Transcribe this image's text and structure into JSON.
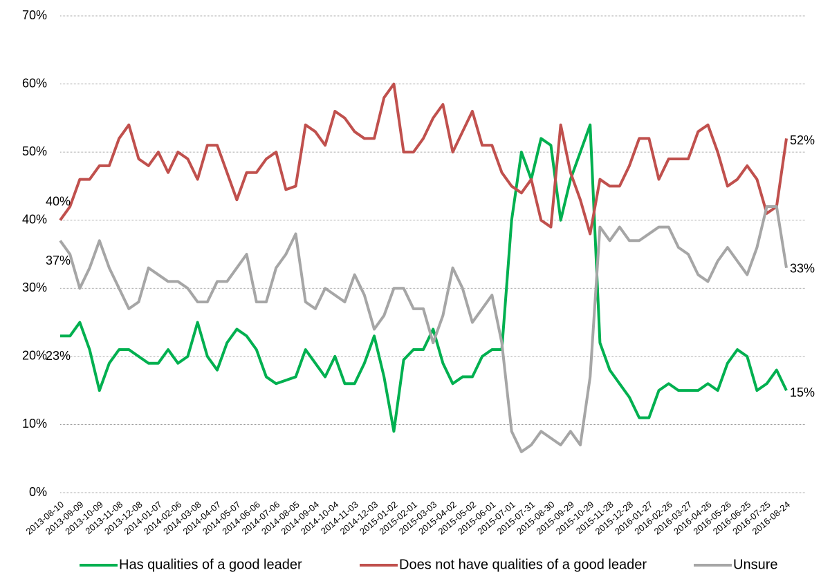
{
  "chart_data": {
    "type": "line",
    "categories": [
      "2013-08-10",
      null,
      "2013-09-09",
      null,
      "2013-10-09",
      null,
      "2013-11-08",
      null,
      "2013-12-08",
      null,
      "2014-01-07",
      null,
      "2014-02-06",
      null,
      "2014-03-08",
      null,
      "2014-04-07",
      null,
      "2014-05-07",
      null,
      "2014-06-06",
      null,
      "2014-07-06",
      null,
      "2014-08-05",
      null,
      "2014-09-04",
      null,
      "2014-10-04",
      null,
      "2014-11-03",
      null,
      "2014-12-03",
      null,
      "2015-01-02",
      null,
      "2015-02-01",
      null,
      "2015-03-03",
      null,
      "2015-04-02",
      null,
      "2015-05-02",
      null,
      "2015-06-01",
      null,
      "2015-07-01",
      null,
      "2015-07-31",
      null,
      "2015-08-30",
      null,
      "2015-09-29",
      null,
      "2015-10-29",
      null,
      "2015-11-28",
      null,
      "2015-12-28",
      null,
      "2016-01-27",
      null,
      "2016-02-26",
      null,
      "2016-03-27",
      null,
      "2016-04-26",
      null,
      "2016-05-26",
      null,
      "2016-06-25",
      null,
      "2016-07-25",
      null,
      "2016-08-24"
    ],
    "series": [
      {
        "name": "Has qualities of a good leader",
        "color": "#00b050",
        "values": [
          23,
          23,
          25,
          21,
          15,
          19,
          21,
          21,
          20,
          19,
          19,
          21,
          19,
          20,
          25,
          20,
          18,
          22,
          24,
          23,
          21,
          17,
          16,
          16.5,
          17,
          21,
          19,
          17,
          20,
          16,
          16,
          19,
          23,
          17,
          9,
          19.5,
          21,
          21,
          24,
          19,
          16,
          17,
          17,
          20,
          21,
          21,
          40,
          50,
          46,
          52,
          51,
          40,
          46,
          50,
          54,
          22,
          18,
          16,
          14,
          11,
          11,
          15,
          16,
          15,
          15,
          15,
          16,
          15,
          19,
          21,
          20,
          15,
          16,
          18,
          15
        ],
        "value_labels": [
          "23%",
          null,
          null,
          null,
          null,
          null,
          null,
          null,
          null,
          null,
          null,
          null,
          null,
          null,
          null,
          null,
          null,
          null,
          null,
          null,
          null,
          null,
          null,
          null,
          null,
          null,
          null,
          null,
          null,
          null,
          null,
          null,
          null,
          null,
          null,
          null,
          null,
          null,
          null,
          null,
          null,
          null,
          null,
          null,
          null,
          null,
          null,
          null,
          null,
          null,
          null,
          null,
          null,
          null,
          null,
          null,
          null,
          null,
          null,
          null,
          null,
          null,
          null,
          null,
          null,
          null,
          null,
          null,
          null,
          null,
          null,
          null,
          null,
          null,
          "15%"
        ]
      },
      {
        "name": "Does not have qualities of a good leader",
        "color": "#c0504d",
        "values": [
          40,
          42,
          46,
          46,
          48,
          48,
          52,
          54,
          49,
          48,
          50,
          47,
          50,
          49,
          46,
          51,
          51,
          47,
          43,
          47,
          47,
          49,
          50,
          44.5,
          45,
          54,
          53,
          51,
          56,
          55,
          53,
          52,
          52,
          58,
          60,
          50,
          50,
          52,
          55,
          57,
          50,
          53,
          56,
          51,
          51,
          47,
          45,
          44,
          46,
          40,
          39,
          54,
          47,
          43,
          38,
          46,
          45,
          45,
          48,
          52,
          52,
          46,
          49,
          49,
          49,
          53,
          54,
          50,
          45,
          46,
          48,
          46,
          41,
          42,
          52
        ],
        "value_labels": [
          "40%",
          null,
          null,
          null,
          null,
          null,
          null,
          null,
          null,
          null,
          null,
          null,
          null,
          null,
          null,
          null,
          null,
          null,
          null,
          null,
          null,
          null,
          null,
          null,
          null,
          null,
          null,
          null,
          null,
          null,
          null,
          null,
          null,
          null,
          null,
          null,
          null,
          null,
          null,
          null,
          null,
          null,
          null,
          null,
          null,
          null,
          null,
          null,
          null,
          null,
          null,
          null,
          null,
          null,
          null,
          null,
          null,
          null,
          null,
          null,
          null,
          null,
          null,
          null,
          null,
          null,
          null,
          null,
          null,
          null,
          null,
          null,
          null,
          null,
          "52%"
        ]
      },
      {
        "name": "Unsure",
        "color": "#a6a6a6",
        "values": [
          37,
          35,
          30,
          33,
          37,
          33,
          30,
          27,
          28,
          33,
          32,
          31,
          31,
          30,
          28,
          28,
          31,
          31,
          33,
          35,
          28,
          28,
          33,
          35,
          38,
          28,
          27,
          30,
          29,
          28,
          32,
          29,
          24,
          26,
          30,
          30,
          27,
          27,
          22,
          26,
          33,
          30,
          25,
          27,
          29,
          22,
          9,
          6,
          7,
          9,
          8,
          7,
          9,
          7,
          17,
          39,
          37,
          39,
          37,
          37,
          38,
          39,
          39,
          36,
          35,
          32,
          31,
          34,
          36,
          34,
          32,
          36,
          42,
          42,
          33
        ],
        "value_labels": [
          "37%",
          null,
          null,
          null,
          null,
          null,
          null,
          null,
          null,
          null,
          null,
          null,
          null,
          null,
          null,
          null,
          null,
          null,
          null,
          null,
          null,
          null,
          null,
          null,
          null,
          null,
          null,
          null,
          null,
          null,
          null,
          null,
          null,
          null,
          null,
          null,
          null,
          null,
          null,
          null,
          null,
          null,
          null,
          null,
          null,
          null,
          null,
          null,
          null,
          null,
          null,
          null,
          null,
          null,
          null,
          null,
          null,
          null,
          null,
          null,
          null,
          null,
          null,
          null,
          null,
          null,
          null,
          null,
          null,
          null,
          null,
          null,
          null,
          null,
          "33%"
        ]
      }
    ],
    "ylim": [
      0,
      70
    ],
    "yticks": [
      {
        "value": 0,
        "label": "0%"
      },
      {
        "value": 10,
        "label": "10%"
      },
      {
        "value": 20,
        "label": "20%"
      },
      {
        "value": 30,
        "label": "30%"
      },
      {
        "value": 40,
        "label": "40%"
      },
      {
        "value": 50,
        "label": "50%"
      },
      {
        "value": 60,
        "label": "60%"
      },
      {
        "value": 70,
        "label": "70%"
      }
    ],
    "grid": true,
    "legend": "bottom"
  }
}
